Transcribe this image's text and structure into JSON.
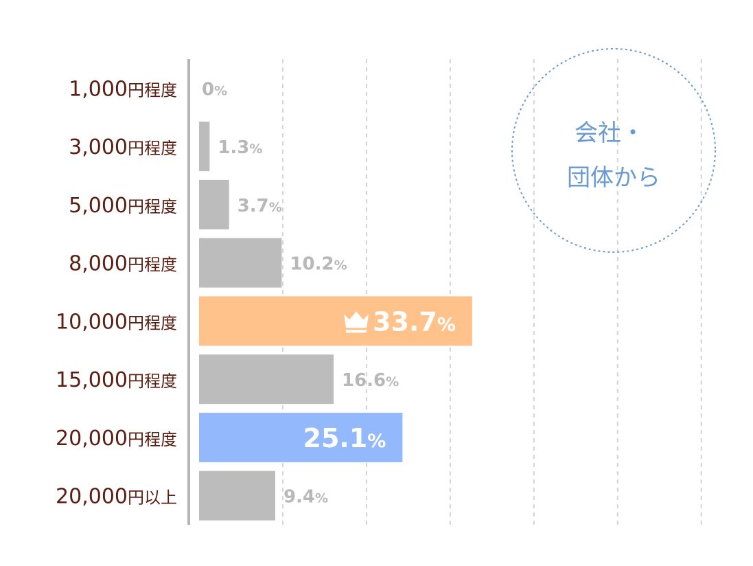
{
  "chart_data": {
    "type": "bar",
    "orientation": "horizontal",
    "categories": [
      {
        "amount": "1,000",
        "suffix": "円程度"
      },
      {
        "amount": "3,000",
        "suffix": "円程度"
      },
      {
        "amount": "5,000",
        "suffix": "円程度"
      },
      {
        "amount": "8,000",
        "suffix": "円程度"
      },
      {
        "amount": "10,000",
        "suffix": "円程度"
      },
      {
        "amount": "15,000",
        "suffix": "円程度"
      },
      {
        "amount": "20,000",
        "suffix": "円程度"
      },
      {
        "amount": "20,000",
        "suffix": "円以上"
      }
    ],
    "values": [
      0,
      1.3,
      3.7,
      10.2,
      33.7,
      16.6,
      25.1,
      9.4
    ],
    "value_labels": [
      "0",
      "1.3",
      "3.7",
      "10.2",
      "33.7",
      "16.6",
      "25.1",
      "9.4"
    ],
    "unit": "%",
    "xlim": [
      0,
      62
    ],
    "grid_step": 10.33,
    "grid": true,
    "top_category_icon": "crown-icon",
    "colors": {
      "default": "#bcbcbc",
      "highest": "#ffc28a",
      "second": "#93b8fb",
      "label_outside": "#b8b8b8",
      "category_text": "#5a1f12",
      "grid": "#d4d4d4",
      "axis": "#b4b4b4",
      "badge": "#6a9ad2"
    },
    "highlight": {
      "highest": 4,
      "second": 6
    }
  },
  "badge": {
    "line1": "会社・",
    "line2": "団体から"
  }
}
